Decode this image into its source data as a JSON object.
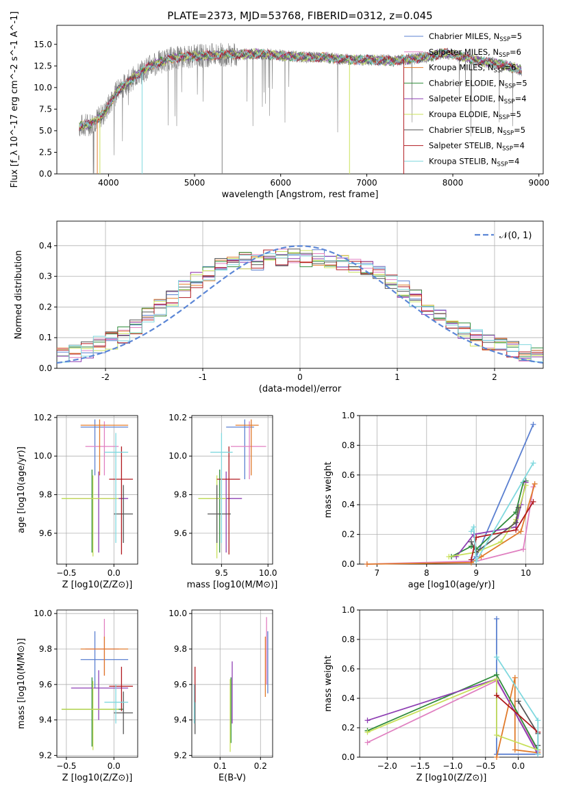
{
  "title": "PLATE=2373, MJD=53768, FIBERID=0312, z=0.045",
  "models": [
    {
      "name": "Chabrier MILES",
      "nssp": "5",
      "color": "#5a7fd0"
    },
    {
      "name": "Salpeter MILES",
      "nssp": "6",
      "color": "#e07fc0"
    },
    {
      "name": "Kroupa MILES",
      "nssp": "6",
      "color": "#e07a2a"
    },
    {
      "name": "Chabrier ELODIE",
      "nssp": "5",
      "color": "#2e8b3a"
    },
    {
      "name": "Salpeter ELODIE",
      "nssp": "4",
      "color": "#8e3fb3"
    },
    {
      "name": "Kroupa ELODIE",
      "nssp": "5",
      "color": "#c8e05a"
    },
    {
      "name": "Chabrier STELIB",
      "nssp": "5",
      "color": "#555555"
    },
    {
      "name": "Salpeter STELIB",
      "nssp": "4",
      "color": "#b0181e"
    },
    {
      "name": "Kroupa STELIB",
      "nssp": "4",
      "color": "#7fd8de"
    }
  ],
  "chart_data": [
    {
      "id": "spectrum",
      "type": "line",
      "xlabel": "wavelength [Angstrom, rest frame]",
      "ylabel": "Flux [f_λ 10^-17 erg cm^-2 s^-1 A^-1]",
      "xlim": [
        3400,
        9050
      ],
      "ylim": [
        0,
        17.2
      ],
      "xticks": [
        4000,
        5000,
        6000,
        7000,
        8000,
        9000
      ],
      "yticks": [
        0,
        2.5,
        5,
        7.5,
        10,
        12.5,
        15
      ],
      "yticklabels": [
        "0.0",
        "2.5",
        "5.0",
        "7.5",
        "10.0",
        "12.5",
        "15.0"
      ],
      "legend": "right",
      "continuum": [
        [
          3650,
          5.5
        ],
        [
          3800,
          5.8
        ],
        [
          3950,
          7.0
        ],
        [
          4100,
          9.6
        ],
        [
          4300,
          11.2
        ],
        [
          4500,
          12.6
        ],
        [
          4700,
          13.3
        ],
        [
          4900,
          13.6
        ],
        [
          5100,
          13.7
        ],
        [
          5300,
          13.8
        ],
        [
          5500,
          13.8
        ],
        [
          5700,
          13.9
        ],
        [
          5900,
          13.8
        ],
        [
          6100,
          13.6
        ],
        [
          6300,
          13.5
        ],
        [
          6500,
          13.5
        ],
        [
          6700,
          13.3
        ],
        [
          6900,
          13.2
        ],
        [
          7100,
          13.2
        ],
        [
          7300,
          13.1
        ],
        [
          7500,
          13.3
        ],
        [
          7700,
          13.5
        ],
        [
          7900,
          14.0
        ],
        [
          8100,
          13.6
        ],
        [
          8300,
          13.1
        ],
        [
          8500,
          12.8
        ],
        [
          8700,
          12.3
        ],
        [
          8800,
          12.0
        ]
      ],
      "series_note": "data spectrum (grey) with nine model fits overlaid"
    },
    {
      "id": "residuals",
      "type": "line",
      "xlabel": "(data-model)/error",
      "ylabel": "Normed distribution",
      "xlim": [
        -2.5,
        2.5
      ],
      "ylim": [
        0,
        0.48
      ],
      "xticks": [
        -2,
        -1,
        0,
        1,
        2
      ],
      "yticks": [
        0,
        0.1,
        0.2,
        0.3,
        0.4
      ],
      "yticklabels": [
        "0.0",
        "0.1",
        "0.2",
        "0.3",
        "0.4"
      ],
      "legend_label": "𝒩(0, 1)",
      "legend": "top-right",
      "histogram_base": [
        0.04,
        0.05,
        0.06,
        0.08,
        0.09,
        0.11,
        0.14,
        0.17,
        0.2,
        0.23,
        0.26,
        0.29,
        0.31,
        0.33,
        0.34,
        0.35,
        0.35,
        0.36,
        0.36,
        0.36,
        0.36,
        0.36,
        0.35,
        0.35,
        0.34,
        0.33,
        0.31,
        0.29,
        0.26,
        0.23,
        0.2,
        0.17,
        0.14,
        0.12,
        0.1,
        0.08,
        0.07,
        0.06,
        0.05,
        0.04
      ]
    },
    {
      "id": "age_vs_Z",
      "type": "scatter",
      "xlabel": "Z [log10(Z/Z⊙)]",
      "ylabel": "age  [log10(age/yr)]",
      "xlim": [
        -0.6,
        0.25
      ],
      "ylim": [
        9.44,
        10.21
      ],
      "xticks": [
        -0.5,
        0.0
      ],
      "xticklabels": [
        "−0.5",
        "0.0"
      ],
      "yticks": [
        9.6,
        9.8,
        10.0,
        10.2
      ],
      "yticklabels": [
        "9.6",
        "9.8",
        "10.0",
        "10.2"
      ],
      "points": [
        {
          "m": 0,
          "x": -0.2,
          "y": 10.15,
          "xe": [
            -0.35,
            0.15
          ],
          "ye": [
            9.9,
            10.19
          ]
        },
        {
          "m": 1,
          "x": -0.1,
          "y": 10.05,
          "xe": [
            -0.3,
            0.05
          ],
          "ye": [
            9.9,
            10.18
          ]
        },
        {
          "m": 2,
          "x": -0.15,
          "y": 10.16,
          "xe": [
            -0.35,
            0.15
          ],
          "ye": [
            9.9,
            10.19
          ]
        },
        {
          "m": 3,
          "x": -0.23,
          "y": 9.78,
          "xe": [
            -0.55,
            0.1
          ],
          "ye": [
            9.5,
            9.93
          ]
        },
        {
          "m": 4,
          "x": -0.16,
          "y": 9.78,
          "xe": [
            -0.45,
            0.15
          ],
          "ye": [
            9.5,
            9.92
          ]
        },
        {
          "m": 5,
          "x": -0.22,
          "y": 9.78,
          "xe": [
            -0.55,
            0.05
          ],
          "ye": [
            9.48,
            9.9
          ]
        },
        {
          "m": 6,
          "x": 0.1,
          "y": 9.7,
          "xe": [
            0.0,
            0.2
          ],
          "ye": [
            9.55,
            9.85
          ]
        },
        {
          "m": 7,
          "x": 0.08,
          "y": 9.88,
          "xe": [
            -0.05,
            0.2
          ],
          "ye": [
            9.49,
            10.05
          ]
        },
        {
          "m": 8,
          "x": 0.02,
          "y": 10.02,
          "xe": [
            -0.1,
            0.15
          ],
          "ye": [
            9.55,
            10.12
          ]
        }
      ]
    },
    {
      "id": "age_vs_mass",
      "type": "scatter",
      "xlabel": "mass [log10(M/M⊙)]",
      "ylabel": "",
      "xlim": [
        9.18,
        10.05
      ],
      "ylim": [
        9.44,
        10.21
      ],
      "xticks": [
        9.5,
        10.0
      ],
      "xticklabels": [
        "9.5",
        "10.0"
      ],
      "yticks": [
        9.6,
        9.8,
        10.0,
        10.2
      ],
      "yticklabels": [
        "9.6",
        "9.8",
        "10.0",
        "10.2"
      ],
      "points": [
        {
          "m": 0,
          "x": 9.75,
          "y": 10.15,
          "xe": [
            9.55,
            9.85
          ],
          "ye": [
            9.88,
            10.19
          ]
        },
        {
          "m": 1,
          "x": 9.8,
          "y": 10.05,
          "xe": [
            9.6,
            9.98
          ],
          "ye": [
            9.88,
            10.18
          ]
        },
        {
          "m": 2,
          "x": 9.82,
          "y": 10.16,
          "xe": [
            9.65,
            9.9
          ],
          "ye": [
            9.9,
            10.19
          ]
        },
        {
          "m": 3,
          "x": 9.48,
          "y": 9.78,
          "xe": [
            9.25,
            9.6
          ],
          "ye": [
            9.5,
            9.93
          ]
        },
        {
          "m": 4,
          "x": 9.55,
          "y": 9.78,
          "xe": [
            9.35,
            9.72
          ],
          "ye": [
            9.5,
            9.92
          ]
        },
        {
          "m": 5,
          "x": 9.45,
          "y": 9.78,
          "xe": [
            9.25,
            9.55
          ],
          "ye": [
            9.47,
            9.9
          ]
        },
        {
          "m": 6,
          "x": 9.45,
          "y": 9.7,
          "xe": [
            9.35,
            9.6
          ],
          "ye": [
            9.55,
            9.85
          ]
        },
        {
          "m": 7,
          "x": 9.58,
          "y": 9.88,
          "xe": [
            9.45,
            9.7
          ],
          "ye": [
            9.49,
            10.05
          ]
        },
        {
          "m": 8,
          "x": 9.5,
          "y": 10.02,
          "xe": [
            9.38,
            9.62
          ],
          "ye": [
            9.55,
            10.12
          ]
        }
      ]
    },
    {
      "id": "weight_vs_age",
      "type": "line",
      "xlabel": "age  [log10(age/yr)]",
      "ylabel": "mass weight",
      "xlim": [
        6.65,
        10.35
      ],
      "ylim": [
        0,
        1.0
      ],
      "xticks": [
        7,
        8,
        9,
        10
      ],
      "xticklabels": [
        "7",
        "8",
        "9",
        "10"
      ],
      "yticks": [
        0,
        0.2,
        0.4,
        0.6,
        0.8,
        1.0
      ],
      "yticklabels": [
        "0.0",
        "0.2",
        "0.4",
        "0.6",
        "0.8",
        "1.0"
      ],
      "series": [
        {
          "m": 0,
          "x": [
            8.9,
            9.0,
            10.15
          ],
          "y": [
            0.02,
            0.05,
            0.94
          ]
        },
        {
          "m": 1,
          "x": [
            6.8,
            9.0,
            9.95,
            10.15
          ],
          "y": [
            0.0,
            0.02,
            0.1,
            0.52
          ]
        },
        {
          "m": 2,
          "x": [
            6.8,
            8.9,
            9.1,
            9.9,
            10.18
          ],
          "y": [
            0.0,
            0.01,
            0.05,
            0.22,
            0.54
          ]
        },
        {
          "m": 3,
          "x": [
            8.5,
            8.9,
            9.0,
            9.8,
            9.95,
            10.0
          ],
          "y": [
            0.05,
            0.12,
            0.1,
            0.35,
            0.55,
            0.56
          ]
        },
        {
          "m": 4,
          "x": [
            8.6,
            8.95,
            9.8,
            9.9,
            10.0
          ],
          "y": [
            0.05,
            0.2,
            0.25,
            0.4,
            0.55
          ]
        },
        {
          "m": 5,
          "x": [
            8.45,
            9.0,
            9.5,
            9.8,
            10.0
          ],
          "y": [
            0.05,
            0.08,
            0.15,
            0.3,
            0.53
          ]
        },
        {
          "m": 6,
          "x": [
            8.9,
            9.0,
            9.8,
            9.85
          ],
          "y": [
            0.15,
            0.08,
            0.28,
            0.38
          ]
        },
        {
          "m": 7,
          "x": [
            8.9,
            9.0,
            9.8,
            10.15
          ],
          "y": [
            0.03,
            0.18,
            0.23,
            0.42
          ]
        },
        {
          "m": 8,
          "x": [
            8.9,
            8.95,
            9.0,
            10.15
          ],
          "y": [
            0.22,
            0.25,
            0.02,
            0.68
          ]
        }
      ]
    },
    {
      "id": "mass_vs_Z",
      "type": "scatter",
      "xlabel": "Z [log10(Z/Z⊙)]",
      "ylabel": "mass [log10(M/M⊙)]",
      "xlim": [
        -0.6,
        0.25
      ],
      "ylim": [
        9.19,
        10.02
      ],
      "xticks": [
        -0.5,
        0.0
      ],
      "xticklabels": [
        "−0.5",
        "0.0"
      ],
      "yticks": [
        9.2,
        9.4,
        9.6,
        9.8,
        10.0
      ],
      "yticklabels": [
        "9.2",
        "9.4",
        "9.6",
        "9.8",
        "10.0"
      ],
      "points": [
        {
          "m": 0,
          "x": -0.2,
          "y": 9.74,
          "xe": [
            -0.35,
            0.15
          ],
          "ye": [
            9.58,
            9.9
          ]
        },
        {
          "m": 1,
          "x": -0.1,
          "y": 9.8,
          "xe": [
            -0.3,
            0.05
          ],
          "ye": [
            9.65,
            9.97
          ]
        },
        {
          "m": 2,
          "x": -0.1,
          "y": 9.8,
          "xe": [
            -0.35,
            0.15
          ],
          "ye": [
            9.65,
            9.87
          ]
        },
        {
          "m": 3,
          "x": -0.23,
          "y": 9.46,
          "xe": [
            -0.55,
            0.1
          ],
          "ye": [
            9.25,
            9.64
          ]
        },
        {
          "m": 4,
          "x": -0.16,
          "y": 9.58,
          "xe": [
            -0.45,
            0.15
          ],
          "ye": [
            9.4,
            9.68
          ]
        },
        {
          "m": 5,
          "x": -0.22,
          "y": 9.46,
          "xe": [
            -0.55,
            0.05
          ],
          "ye": [
            9.23,
            9.62
          ]
        },
        {
          "m": 6,
          "x": 0.1,
          "y": 9.44,
          "xe": [
            0.0,
            0.2
          ],
          "ye": [
            9.32,
            9.56
          ]
        },
        {
          "m": 7,
          "x": 0.08,
          "y": 9.59,
          "xe": [
            -0.05,
            0.2
          ],
          "ye": [
            9.45,
            9.7
          ]
        },
        {
          "m": 8,
          "x": 0.02,
          "y": 9.5,
          "xe": [
            -0.1,
            0.15
          ],
          "ye": [
            9.38,
            9.6
          ]
        }
      ]
    },
    {
      "id": "mass_vs_EBV",
      "type": "scatter",
      "xlabel": "E(B-V)",
      "ylabel": "",
      "xlim": [
        0.03,
        0.23
      ],
      "ylim": [
        9.19,
        10.02
      ],
      "xticks": [
        0.1,
        0.2
      ],
      "xticklabels": [
        "0.1",
        "0.2"
      ],
      "yticks": [
        9.2,
        9.4,
        9.6,
        9.8,
        10.0
      ],
      "yticklabels": [
        "9.2",
        "9.4",
        "9.6",
        "9.8",
        "10.0"
      ],
      "points": [
        {
          "m": 0,
          "x": 0.218,
          "y": 9.74,
          "ye": [
            9.55,
            9.9
          ]
        },
        {
          "m": 1,
          "x": 0.215,
          "y": 9.8,
          "ye": [
            9.6,
            9.98
          ]
        },
        {
          "m": 2,
          "x": 0.212,
          "y": 9.8,
          "ye": [
            9.53,
            9.87
          ]
        },
        {
          "m": 3,
          "x": 0.127,
          "y": 9.46,
          "ye": [
            9.27,
            9.64
          ]
        },
        {
          "m": 4,
          "x": 0.13,
          "y": 9.58,
          "ye": [
            9.38,
            9.73
          ]
        },
        {
          "m": 5,
          "x": 0.125,
          "y": 9.46,
          "ye": [
            9.22,
            9.63
          ]
        },
        {
          "m": 6,
          "x": 0.038,
          "y": 9.44,
          "ye": [
            9.32,
            9.6
          ]
        },
        {
          "m": 7,
          "x": 0.038,
          "y": 9.59,
          "ye": [
            9.5,
            9.7
          ]
        },
        {
          "m": 8,
          "x": 0.036,
          "y": 9.5,
          "ye": [
            9.38,
            9.6
          ]
        }
      ]
    },
    {
      "id": "weight_vs_Z",
      "type": "line",
      "xlabel": "Z [log10(Z/Z⊙)]",
      "ylabel": "mass weight",
      "xlim": [
        -2.42,
        0.38
      ],
      "ylim": [
        0,
        1.0
      ],
      "xticks": [
        -2.0,
        -1.5,
        -1.0,
        -0.5,
        0.0
      ],
      "xticklabels": [
        "−2.0",
        "−1.5",
        "−1.0",
        "−0.5",
        "0.0"
      ],
      "yticks": [
        0,
        0.2,
        0.4,
        0.6,
        0.8,
        1.0
      ],
      "yticklabels": [
        "0.0",
        "0.2",
        "0.4",
        "0.6",
        "0.8",
        "1.0"
      ],
      "series": [
        {
          "m": 0,
          "x": [
            0.3,
            -0.33,
            -0.33
          ],
          "y": [
            0.02,
            0.02,
            0.94
          ]
        },
        {
          "m": 1,
          "x": [
            -2.3,
            -0.33,
            0.3
          ],
          "y": [
            0.1,
            0.52,
            0.04
          ]
        },
        {
          "m": 2,
          "x": [
            -0.33,
            -0.05,
            -0.05,
            0.3
          ],
          "y": [
            0.0,
            0.54,
            0.05,
            0.03
          ]
        },
        {
          "m": 3,
          "x": [
            -2.3,
            -0.33,
            0.3
          ],
          "y": [
            0.18,
            0.56,
            0.05
          ]
        },
        {
          "m": 4,
          "x": [
            -2.3,
            -0.33,
            0.3
          ],
          "y": [
            0.25,
            0.53,
            0.02
          ]
        },
        {
          "m": 5,
          "x": [
            -2.3,
            -0.33,
            -0.33,
            0.3
          ],
          "y": [
            0.17,
            0.53,
            0.15,
            0.05
          ]
        },
        {
          "m": 6,
          "x": [
            0.0,
            0.3,
            0.3
          ],
          "y": [
            0.38,
            0.16,
            0.08
          ]
        },
        {
          "m": 7,
          "x": [
            -0.33,
            0.3
          ],
          "y": [
            0.42,
            0.17
          ]
        },
        {
          "m": 8,
          "x": [
            -0.33,
            0.3,
            0.3
          ],
          "y": [
            0.68,
            0.25,
            0.02
          ]
        }
      ]
    }
  ]
}
